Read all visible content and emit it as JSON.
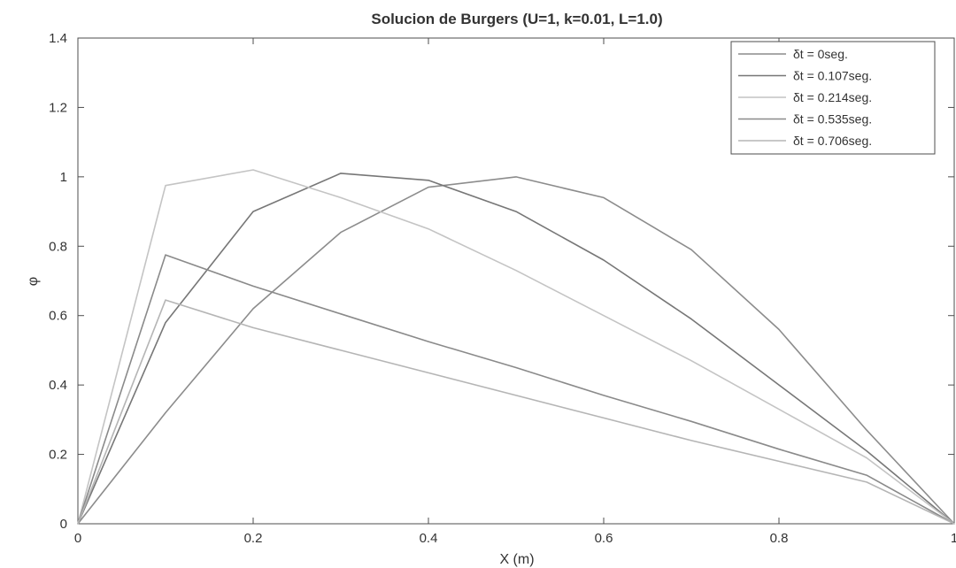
{
  "chart_data": {
    "type": "line",
    "title": "Solucion de Burgers (U=1, k=0.01, L=1.0)",
    "xlabel": "X (m)",
    "ylabel": "φ",
    "xlim": [
      0,
      1
    ],
    "ylim": [
      0,
      1.4
    ],
    "xticks": [
      0,
      0.2,
      0.4,
      0.6,
      0.8,
      1
    ],
    "xtick_labels": [
      "0",
      "0.2",
      "0.4",
      "0.6",
      "0.8",
      "1"
    ],
    "yticks": [
      0,
      0.2,
      0.4,
      0.6,
      0.8,
      1,
      1.2,
      1.4
    ],
    "ytick_labels": [
      "0",
      "0.2",
      "0.4",
      "0.6",
      "0.8",
      "1",
      "1.2",
      "1.4"
    ],
    "grid": false,
    "legend_position": "top-right",
    "x": [
      0,
      0.1,
      0.2,
      0.3,
      0.4,
      0.5,
      0.6,
      0.7,
      0.8,
      0.9,
      1.0
    ],
    "series": [
      {
        "name": "δt = 0seg.",
        "color": "#8c8c8c",
        "values": [
          0,
          0.32,
          0.62,
          0.84,
          0.97,
          1.0,
          0.94,
          0.79,
          0.56,
          0.27,
          0
        ]
      },
      {
        "name": "δt = 0.107seg.",
        "color": "#777777",
        "values": [
          0,
          0.58,
          0.9,
          1.01,
          0.99,
          0.9,
          0.76,
          0.59,
          0.4,
          0.21,
          0
        ]
      },
      {
        "name": "δt = 0.214seg.",
        "color": "#c4c4c4",
        "values": [
          0,
          0.975,
          1.02,
          0.94,
          0.85,
          0.73,
          0.6,
          0.47,
          0.33,
          0.19,
          0
        ]
      },
      {
        "name": "δt = 0.535seg.",
        "color": "#8a8a8a",
        "values": [
          0,
          0.775,
          0.685,
          0.605,
          0.525,
          0.45,
          0.37,
          0.295,
          0.215,
          0.14,
          0
        ]
      },
      {
        "name": "δt = 0.706seg.",
        "color": "#b5b5b5",
        "values": [
          0,
          0.645,
          0.565,
          0.5,
          0.435,
          0.37,
          0.305,
          0.24,
          0.18,
          0.12,
          0
        ]
      }
    ]
  }
}
